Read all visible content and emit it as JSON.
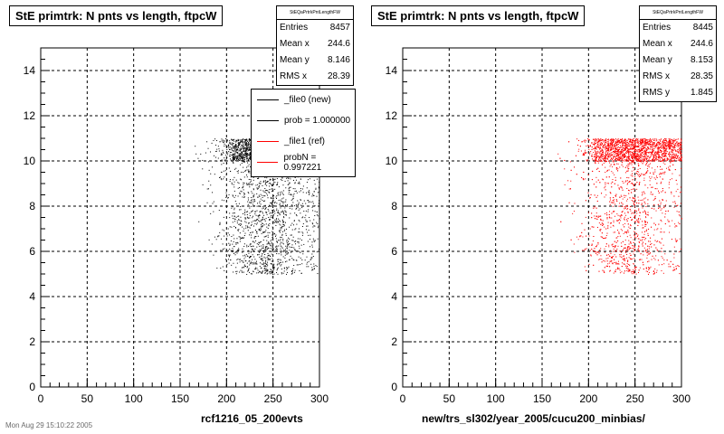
{
  "chart_data": [
    {
      "type": "scatter",
      "title": "StE primtrk: N pnts vs length, ftpcW",
      "xlabel": "rcf1216_05_200evts",
      "xlim": [
        0,
        300
      ],
      "ylim": [
        0,
        15
      ],
      "x_ticks": [
        "0",
        "50",
        "100",
        "150",
        "200",
        "250",
        "300"
      ],
      "y_ticks": [
        "0",
        "2",
        "4",
        "6",
        "8",
        "10",
        "12",
        "14"
      ],
      "grid": true,
      "marker_color": "#000000",
      "stats": {
        "name": "StEQaPrtrkPntLengthFW",
        "rows": [
          {
            "label": "Entries",
            "value": "8457"
          },
          {
            "label": "Mean x",
            "value": "244.6"
          },
          {
            "label": "Mean y",
            "value": "8.146"
          },
          {
            "label": "RMS x",
            "value": "28.39"
          }
        ]
      },
      "legend": [
        {
          "label": "_file0 (new)",
          "color": "#000000"
        },
        {
          "label": "prob = 1.000000",
          "color": "#000000"
        },
        {
          "label": "_file1 (ref)",
          "color": "#ff0000"
        },
        {
          "label": "probN = 0.997221",
          "color": "#ff0000"
        }
      ]
    },
    {
      "type": "scatter",
      "title": "StE primtrk: N pnts vs length, ftpcW",
      "xlabel": "new/trs_sl302/year_2005/cucu200_minbias/",
      "xlim": [
        0,
        300
      ],
      "ylim": [
        0,
        15
      ],
      "x_ticks": [
        "0",
        "50",
        "100",
        "150",
        "200",
        "250",
        "300"
      ],
      "y_ticks": [
        "0",
        "2",
        "4",
        "6",
        "8",
        "10",
        "12",
        "14"
      ],
      "grid": true,
      "marker_color": "#ff0000",
      "stats": {
        "name": "StEQaPrtrkPntLengthFW",
        "rows": [
          {
            "label": "Entries",
            "value": "8445"
          },
          {
            "label": "Mean x",
            "value": "244.6"
          },
          {
            "label": "Mean y",
            "value": "8.153"
          },
          {
            "label": "RMS x",
            "value": "28.35"
          },
          {
            "label": "RMS y",
            "value": "1.845"
          }
        ]
      }
    }
  ],
  "footer": "Mon Aug 29 15:10:22 2005"
}
